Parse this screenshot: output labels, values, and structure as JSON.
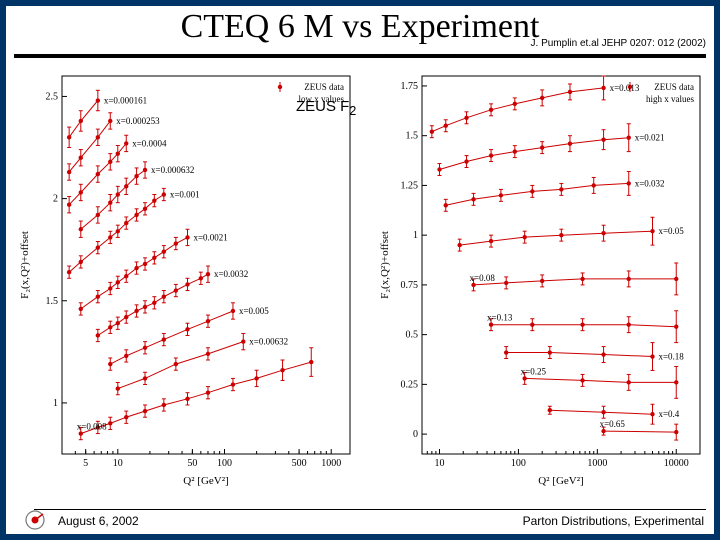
{
  "title": "CTEQ 6 M vs Experiment",
  "citation": "J. Pumplin et.al JEHP 0207: 012 (2002)",
  "mid_label": "ZEUS F",
  "mid_label_sub": "2",
  "footer_left": "August  6, 2002",
  "footer_right": "Parton Distributions, Experimental",
  "left_chart": {
    "type": "scatter",
    "legend": "ZEUS data",
    "legend_sub": "low x values",
    "xlabel": "Q² [GeV²]",
    "ylabel": "F₂(x,Q²)+offset",
    "xscale": "log",
    "xlim": [
      3,
      1500
    ],
    "xticks": [
      5,
      10,
      50,
      100,
      500,
      1000
    ],
    "xtick_labels": [
      "5",
      "10",
      "50",
      "100",
      "500",
      "1000"
    ],
    "ylim": [
      0.75,
      2.6
    ],
    "yticks": [
      1,
      1.5,
      2,
      2.5
    ],
    "ytick_labels": [
      "1",
      "1.5",
      "2",
      "2.5"
    ],
    "background_color": "#ffffff",
    "point_color": "#cc0000",
    "line_color": "#cc0000",
    "marker_size": 2.2,
    "series": [
      {
        "x_label": "x=0.000161",
        "q2": [
          3.5,
          4.5,
          6.5
        ],
        "f2": [
          2.3,
          2.38,
          2.48
        ],
        "err": [
          0.05,
          0.05,
          0.05
        ]
      },
      {
        "x_label": "x=0.000253",
        "q2": [
          3.5,
          4.5,
          6.5,
          8.5
        ],
        "f2": [
          2.13,
          2.2,
          2.3,
          2.38
        ],
        "err": [
          0.04,
          0.04,
          0.04,
          0.04
        ]
      },
      {
        "x_label": "x=0.0004",
        "q2": [
          3.5,
          4.5,
          6.5,
          8.5,
          10,
          12
        ],
        "f2": [
          1.97,
          2.03,
          2.12,
          2.18,
          2.22,
          2.27
        ],
        "err": [
          0.04,
          0.04,
          0.04,
          0.04,
          0.04,
          0.04
        ]
      },
      {
        "x_label": "x=0.000632",
        "q2": [
          4.5,
          6.5,
          8.5,
          10,
          12,
          15,
          18
        ],
        "f2": [
          1.85,
          1.92,
          1.98,
          2.02,
          2.06,
          2.11,
          2.14
        ],
        "err": [
          0.04,
          0.04,
          0.04,
          0.04,
          0.04,
          0.04,
          0.04
        ]
      },
      {
        "x_label": "x=0.001",
        "q2": [
          3.5,
          4.5,
          6.5,
          8.5,
          10,
          12,
          15,
          18,
          22,
          27
        ],
        "f2": [
          1.64,
          1.69,
          1.76,
          1.81,
          1.84,
          1.88,
          1.92,
          1.95,
          1.99,
          2.02
        ],
        "err": [
          0.03,
          0.03,
          0.03,
          0.03,
          0.03,
          0.03,
          0.03,
          0.03,
          0.03,
          0.03
        ]
      },
      {
        "x_label": "x=0.0021",
        "q2": [
          4.5,
          6.5,
          8.5,
          10,
          12,
          15,
          18,
          22,
          27,
          35,
          45
        ],
        "f2": [
          1.46,
          1.52,
          1.56,
          1.59,
          1.62,
          1.66,
          1.68,
          1.71,
          1.74,
          1.78,
          1.81
        ],
        "err": [
          0.03,
          0.03,
          0.03,
          0.03,
          0.03,
          0.03,
          0.03,
          0.03,
          0.03,
          0.03,
          0.04
        ]
      },
      {
        "x_label": "x=0.0032",
        "q2": [
          6.5,
          8.5,
          10,
          12,
          15,
          18,
          22,
          27,
          35,
          45,
          60,
          70
        ],
        "f2": [
          1.33,
          1.37,
          1.39,
          1.42,
          1.45,
          1.47,
          1.49,
          1.52,
          1.55,
          1.58,
          1.61,
          1.63
        ],
        "err": [
          0.03,
          0.03,
          0.03,
          0.03,
          0.03,
          0.03,
          0.03,
          0.03,
          0.03,
          0.03,
          0.03,
          0.04
        ]
      },
      {
        "x_label": "x=0.005",
        "q2": [
          8.5,
          12,
          18,
          27,
          45,
          70,
          120
        ],
        "f2": [
          1.19,
          1.23,
          1.27,
          1.31,
          1.36,
          1.4,
          1.45
        ],
        "err": [
          0.03,
          0.03,
          0.03,
          0.03,
          0.03,
          0.03,
          0.04
        ]
      },
      {
        "x_label": "x=0.00632",
        "q2": [
          10,
          18,
          35,
          70,
          150
        ],
        "f2": [
          1.07,
          1.12,
          1.19,
          1.24,
          1.3
        ],
        "err": [
          0.03,
          0.03,
          0.03,
          0.03,
          0.04
        ]
      },
      {
        "x_label": "x=0.008",
        "q2": [
          4.5,
          6.5,
          8.5,
          12,
          18,
          27,
          45,
          70,
          120,
          200,
          350,
          650
        ],
        "f2": [
          0.85,
          0.88,
          0.9,
          0.93,
          0.96,
          0.99,
          1.02,
          1.05,
          1.09,
          1.12,
          1.16,
          1.2
        ],
        "err": [
          0.03,
          0.03,
          0.03,
          0.03,
          0.03,
          0.03,
          0.03,
          0.03,
          0.03,
          0.04,
          0.05,
          0.07
        ]
      }
    ]
  },
  "right_chart": {
    "type": "scatter",
    "legend": "ZEUS data",
    "legend_sub": "high x values",
    "xlabel": "Q² [GeV²]",
    "ylabel": "F₂(x,Q²)+offset",
    "xscale": "log",
    "xlim": [
      6,
      20000
    ],
    "xticks": [
      10,
      100,
      1000,
      10000
    ],
    "xtick_labels": [
      "10",
      "100",
      "1000",
      "10000"
    ],
    "ylim": [
      -0.1,
      1.8
    ],
    "yticks": [
      0,
      0.25,
      0.5,
      0.75,
      1,
      1.25,
      1.5,
      1.75
    ],
    "ytick_labels": [
      "0",
      "0.25",
      "0.5",
      "0.75",
      "1",
      "1.25",
      "1.5",
      "1.75"
    ],
    "background_color": "#ffffff",
    "point_color": "#cc0000",
    "line_color": "#cc0000",
    "marker_size": 2.2,
    "series": [
      {
        "x_label": "x=0.013",
        "q2": [
          8,
          12,
          22,
          45,
          90,
          200,
          450,
          1200
        ],
        "f2": [
          1.52,
          1.55,
          1.59,
          1.63,
          1.66,
          1.69,
          1.72,
          1.74
        ],
        "err": [
          0.03,
          0.03,
          0.03,
          0.03,
          0.03,
          0.04,
          0.04,
          0.06
        ]
      },
      {
        "x_label": "x=0.021",
        "q2": [
          10,
          22,
          45,
          90,
          200,
          450,
          1200,
          2500
        ],
        "f2": [
          1.33,
          1.37,
          1.4,
          1.42,
          1.44,
          1.46,
          1.48,
          1.49
        ],
        "err": [
          0.03,
          0.03,
          0.03,
          0.03,
          0.03,
          0.04,
          0.05,
          0.07
        ]
      },
      {
        "x_label": "x=0.032",
        "q2": [
          12,
          27,
          60,
          150,
          350,
          900,
          2500
        ],
        "f2": [
          1.15,
          1.18,
          1.2,
          1.22,
          1.23,
          1.25,
          1.26
        ],
        "err": [
          0.03,
          0.03,
          0.03,
          0.03,
          0.03,
          0.04,
          0.06
        ]
      },
      {
        "x_label": "x=0.05",
        "q2": [
          18,
          45,
          120,
          350,
          1200,
          5000
        ],
        "f2": [
          0.95,
          0.97,
          0.99,
          1.0,
          1.01,
          1.02
        ],
        "err": [
          0.03,
          0.03,
          0.03,
          0.03,
          0.04,
          0.07
        ]
      },
      {
        "x_label": "x=0.08",
        "q2": [
          27,
          70,
          200,
          650,
          2500,
          10000
        ],
        "f2": [
          0.75,
          0.76,
          0.77,
          0.78,
          0.78,
          0.78
        ],
        "err": [
          0.03,
          0.03,
          0.03,
          0.03,
          0.04,
          0.08
        ]
      },
      {
        "x_label": "x=0.13",
        "q2": [
          45,
          150,
          650,
          2500,
          10000
        ],
        "f2": [
          0.55,
          0.55,
          0.55,
          0.55,
          0.54
        ],
        "err": [
          0.03,
          0.03,
          0.03,
          0.04,
          0.08
        ]
      },
      {
        "x_label": "x=0.18",
        "q2": [
          70,
          250,
          1200,
          5000
        ],
        "f2": [
          0.41,
          0.41,
          0.4,
          0.39
        ],
        "err": [
          0.03,
          0.03,
          0.04,
          0.07
        ]
      },
      {
        "x_label": "x=0.25",
        "q2": [
          120,
          650,
          2500,
          10000
        ],
        "f2": [
          0.28,
          0.27,
          0.26,
          0.26
        ],
        "err": [
          0.03,
          0.03,
          0.04,
          0.08
        ]
      },
      {
        "x_label": "x=0.4",
        "q2": [
          250,
          1200,
          5000
        ],
        "f2": [
          0.12,
          0.11,
          0.1
        ],
        "err": [
          0.02,
          0.03,
          0.05
        ]
      },
      {
        "x_label": "x=0.65",
        "q2": [
          1200,
          10000
        ],
        "f2": [
          0.015,
          0.01
        ],
        "err": [
          0.02,
          0.04
        ]
      }
    ]
  }
}
